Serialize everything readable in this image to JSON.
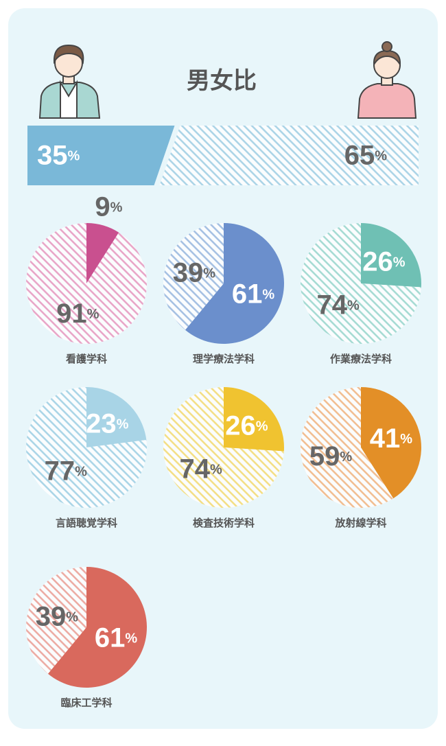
{
  "chart_data": [
    {
      "type": "bar",
      "title": "男女比",
      "values": [
        35,
        65
      ],
      "value_labels": [
        "35%",
        "65%"
      ],
      "colors": [
        "#7ab8d8",
        "#a9d3e6"
      ]
    },
    {
      "type": "pie",
      "title": "看護学科",
      "values": [
        9,
        91
      ],
      "value_labels": [
        "9%",
        "91%"
      ],
      "colors": [
        "#c9508f",
        "#e8a3c6"
      ]
    },
    {
      "type": "pie",
      "title": "理学療法学科",
      "values": [
        61,
        39
      ],
      "value_labels": [
        "61%",
        "39%"
      ],
      "colors": [
        "#6b8fcc",
        "#a3bfe2"
      ]
    },
    {
      "type": "pie",
      "title": "作業療法学科",
      "values": [
        26,
        74
      ],
      "value_labels": [
        "26%",
        "74%"
      ],
      "colors": [
        "#6fc0b4",
        "#a3dad2"
      ]
    },
    {
      "type": "pie",
      "title": "言語聴覚学科",
      "values": [
        23,
        77
      ],
      "value_labels": [
        "23%",
        "77%"
      ],
      "colors": [
        "#a8d4e6",
        "#a8d4e6"
      ]
    },
    {
      "type": "pie",
      "title": "検査技術学科",
      "values": [
        26,
        74
      ],
      "value_labels": [
        "26%",
        "74%"
      ],
      "colors": [
        "#f0c330",
        "#f3de82"
      ]
    },
    {
      "type": "pie",
      "title": "放射線学科",
      "values": [
        41,
        59
      ],
      "value_labels": [
        "41%",
        "59%"
      ],
      "colors": [
        "#e38f27",
        "#f1bc8e"
      ]
    },
    {
      "type": "pie",
      "title": "臨床工学科",
      "values": [
        61,
        39
      ],
      "value_labels": [
        "61%",
        "39%"
      ],
      "colors": [
        "#d9695d",
        "#eca9a1"
      ]
    }
  ]
}
